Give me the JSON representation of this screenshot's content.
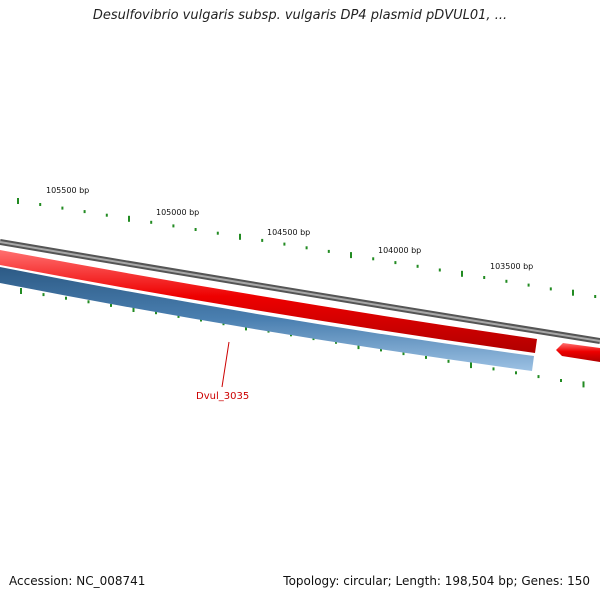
{
  "title": "Desulfovibrio vulgaris subsp. vulgaris DP4 plasmid pDVUL01, ...",
  "ticks": {
    "labels": [
      "105500 bp",
      "105000 bp",
      "104500 bp",
      "104000 bp",
      "103500 bp"
    ]
  },
  "genes": {
    "highlighted_label": "Dvul_3035"
  },
  "colors": {
    "backbone": "#8a8a8a",
    "forward_strand": "#ee0000",
    "reverse_strand": "#4a7fb0",
    "tick": "#228b22",
    "label_red": "#cc0000"
  },
  "footer": {
    "accession": "Accession: NC_008741",
    "summary": "Topology: circular; Length: 198,504 bp; Genes: 150"
  }
}
